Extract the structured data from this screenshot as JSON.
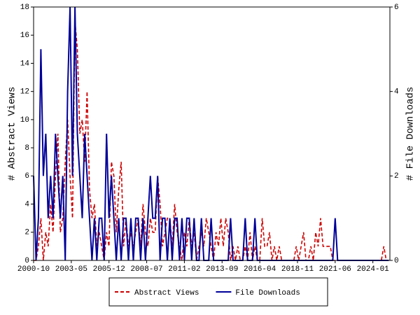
{
  "chart_data": {
    "type": "line",
    "y_label": "# Abstract Views",
    "y2_label": "# File Downloads",
    "x": [
      "2000-10",
      "2000-12",
      "2001-02",
      "2001-04",
      "2001-06",
      "2001-08",
      "2001-10",
      "2001-12",
      "2002-02",
      "2002-04",
      "2002-06",
      "2002-08",
      "2002-10",
      "2002-12",
      "2003-02",
      "2003-04",
      "2003-06",
      "2003-08",
      "2003-10",
      "2003-12",
      "2004-02",
      "2004-04",
      "2004-06",
      "2004-08",
      "2004-10",
      "2004-12",
      "2005-02",
      "2005-04",
      "2005-06",
      "2005-08",
      "2005-10",
      "2005-12",
      "2006-02",
      "2006-04",
      "2006-06",
      "2006-08",
      "2006-10",
      "2006-12",
      "2007-02",
      "2007-04",
      "2007-06",
      "2007-08",
      "2007-10",
      "2007-12",
      "2008-02",
      "2008-04",
      "2008-06",
      "2008-08",
      "2008-10",
      "2008-12",
      "2009-02",
      "2009-04",
      "2009-06",
      "2009-08",
      "2009-10",
      "2009-12",
      "2010-02",
      "2010-04",
      "2010-06",
      "2010-08",
      "2010-10",
      "2010-12",
      "2011-02",
      "2011-04",
      "2011-06",
      "2011-08",
      "2011-10",
      "2011-12",
      "2012-02",
      "2012-04",
      "2012-06",
      "2012-08",
      "2012-10",
      "2012-12",
      "2013-02",
      "2013-04",
      "2013-06",
      "2013-08",
      "2013-10",
      "2013-12",
      "2014-02",
      "2014-04",
      "2014-06",
      "2014-08",
      "2014-10",
      "2014-12",
      "2015-02",
      "2015-04",
      "2015-06",
      "2015-08",
      "2015-10",
      "2015-12",
      "2016-02",
      "2016-04",
      "2016-06",
      "2016-08",
      "2016-10",
      "2016-12",
      "2017-02",
      "2017-04",
      "2017-06",
      "2017-08",
      "2017-10",
      "2017-12",
      "2018-02",
      "2018-04",
      "2018-06",
      "2018-08",
      "2018-10",
      "2018-12",
      "2019-02",
      "2019-04",
      "2019-06",
      "2019-08",
      "2019-10",
      "2019-12",
      "2020-02",
      "2020-04",
      "2020-06",
      "2020-08",
      "2020-10",
      "2020-12",
      "2021-02",
      "2021-04",
      "2021-06",
      "2021-08",
      "2021-10",
      "2021-12",
      "2022-02",
      "2022-04",
      "2022-06",
      "2022-08",
      "2022-10",
      "2022-12",
      "2023-02",
      "2023-04",
      "2023-06",
      "2023-08",
      "2023-10",
      "2023-12",
      "2024-02",
      "2024-04",
      "2024-06",
      "2024-08",
      "2024-10",
      "2024-12",
      "2025-02"
    ],
    "series": [
      {
        "name": "Abstract Views",
        "color": "#cc0000",
        "dash": true,
        "axis": "y",
        "values": [
          0,
          0,
          1,
          3,
          0,
          2,
          1,
          4,
          2,
          6,
          9,
          2,
          3,
          7,
          10,
          6,
          3,
          17,
          15,
          9,
          10,
          7,
          12,
          5,
          3,
          4,
          1,
          2,
          1,
          0,
          2,
          1,
          7,
          6,
          2,
          5,
          7,
          1,
          3,
          1,
          2,
          1,
          2,
          3,
          1,
          4,
          2,
          1,
          3,
          2,
          2,
          6,
          4,
          1,
          2,
          3,
          3,
          1,
          4,
          2,
          1,
          0,
          2,
          1,
          3,
          1,
          2,
          0,
          1,
          2,
          1,
          3,
          2,
          1,
          0,
          2,
          1,
          3,
          1,
          3,
          2,
          0,
          1,
          0,
          1,
          0,
          0,
          1,
          0,
          2,
          0,
          1,
          0,
          0,
          3,
          1,
          1,
          2,
          0,
          1,
          0,
          1,
          0,
          0,
          0,
          0,
          0,
          0,
          1,
          0,
          1,
          2,
          0,
          0,
          1,
          0,
          2,
          1,
          3,
          1,
          1,
          1,
          1,
          0,
          0,
          0,
          0,
          0,
          0,
          0,
          0,
          0,
          0,
          0,
          0,
          0,
          0,
          0,
          0,
          0,
          0,
          0,
          0,
          0,
          1,
          0,
          0
        ]
      },
      {
        "name": "File Downloads",
        "color": "#000099",
        "dash": false,
        "axis": "y2",
        "values": [
          2,
          0,
          1,
          5,
          2,
          3,
          1,
          2,
          1,
          3,
          2,
          1,
          2,
          0,
          4,
          6,
          2,
          6,
          3,
          2,
          1,
          3,
          2,
          1,
          0,
          1,
          0,
          1,
          1,
          0,
          3,
          1,
          2,
          1,
          0,
          1,
          0,
          1,
          1,
          0,
          1,
          0,
          1,
          1,
          0,
          1,
          0,
          1,
          2,
          1,
          1,
          2,
          0,
          1,
          1,
          0,
          1,
          0,
          1,
          1,
          0,
          1,
          0,
          1,
          1,
          0,
          1,
          0,
          0,
          1,
          0,
          0,
          0,
          1,
          0,
          0,
          0,
          0,
          0,
          0,
          0,
          1,
          0,
          0,
          0,
          0,
          0,
          1,
          0,
          0,
          0,
          1,
          0,
          0,
          0,
          0,
          0,
          0,
          0,
          0,
          0,
          0,
          0,
          0,
          0,
          0,
          0,
          0,
          0,
          0,
          0,
          0,
          0,
          0,
          0,
          0,
          0,
          0,
          0,
          0,
          0,
          0,
          0,
          0,
          1,
          0,
          0,
          0,
          0,
          0,
          0,
          0,
          0,
          0,
          0,
          0,
          0,
          0,
          0,
          0,
          0,
          0,
          0,
          0,
          0,
          0,
          0
        ]
      }
    ],
    "xlim": [
      "2000-10",
      "2025-03"
    ],
    "xticks": [
      "2000-10",
      "2003-05",
      "2005-12",
      "2008-07",
      "2011-02",
      "2013-09",
      "2016-04",
      "2018-11",
      "2021-06",
      "2024-01"
    ],
    "ylim": [
      0,
      18
    ],
    "yticks": [
      0,
      2,
      4,
      6,
      8,
      10,
      12,
      14,
      16,
      18
    ],
    "y2lim": [
      0,
      6
    ],
    "y2ticks": [
      0,
      2,
      4,
      6
    ],
    "legend": "bottom"
  }
}
